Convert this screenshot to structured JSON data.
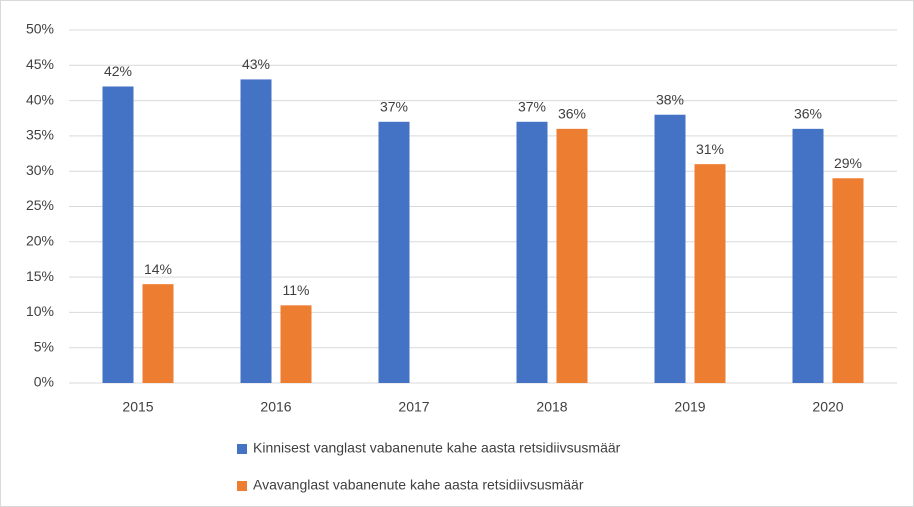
{
  "chart_data": {
    "type": "bar",
    "categories": [
      "2015",
      "2016",
      "2017",
      "2018",
      "2019",
      "2020"
    ],
    "series": [
      {
        "name": "Kinnisest vanglast vabanenute kahe aasta retsidiivsusmäär",
        "color": "#4472c4",
        "values": [
          42,
          43,
          37,
          37,
          38,
          36
        ],
        "value_labels": [
          "42%",
          "43%",
          "37%",
          "37%",
          "38%",
          "36%"
        ]
      },
      {
        "name": "Avavanglast vabanenute kahe aasta retsidiivsusmäär",
        "color": "#ed7d31",
        "values": [
          14,
          11,
          null,
          36,
          31,
          29
        ],
        "value_labels": [
          "14%",
          "11%",
          null,
          "36%",
          "31%",
          "29%"
        ]
      }
    ],
    "ylim": [
      0,
      50
    ],
    "yticks": [
      {
        "value": 0,
        "label": "0%"
      },
      {
        "value": 5,
        "label": "5%"
      },
      {
        "value": 10,
        "label": "10%"
      },
      {
        "value": 15,
        "label": "15%"
      },
      {
        "value": 20,
        "label": "20%"
      },
      {
        "value": 25,
        "label": "25%"
      },
      {
        "value": 30,
        "label": "30%"
      },
      {
        "value": 35,
        "label": "35%"
      },
      {
        "value": 40,
        "label": "40%"
      },
      {
        "value": 45,
        "label": "45%"
      },
      {
        "value": 50,
        "label": "50%"
      }
    ],
    "grid": true,
    "legend": "bottom"
  }
}
